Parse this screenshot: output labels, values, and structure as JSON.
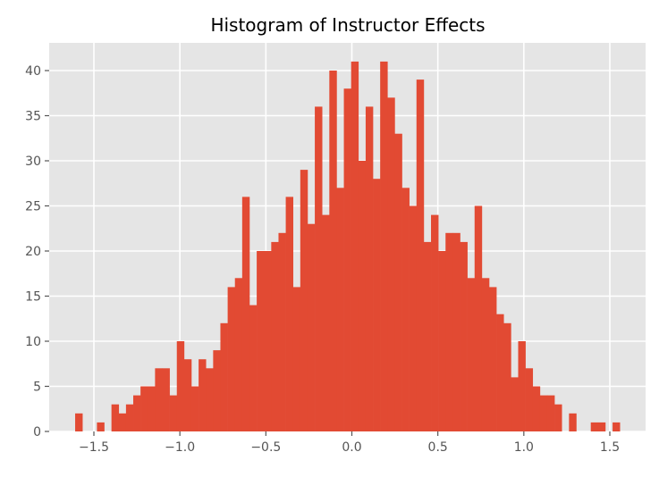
{
  "chart_data": {
    "type": "bar",
    "title": "Histogram of Instructor Effects",
    "xlabel": "",
    "ylabel": "",
    "bin_start": -1.609,
    "bin_width": 0.04223,
    "counts": [
      2,
      0,
      0,
      1,
      0,
      3,
      2,
      3,
      4,
      5,
      5,
      7,
      7,
      4,
      10,
      8,
      5,
      8,
      7,
      9,
      12,
      16,
      17,
      26,
      14,
      20,
      20,
      21,
      22,
      26,
      16,
      29,
      23,
      36,
      24,
      40,
      27,
      38,
      41,
      30,
      36,
      28,
      41,
      37,
      33,
      27,
      25,
      39,
      21,
      24,
      20,
      22,
      22,
      21,
      17,
      25,
      17,
      16,
      13,
      12,
      6,
      10,
      7,
      5,
      4,
      4,
      3,
      0,
      2,
      0,
      0,
      1,
      1,
      0,
      1
    ],
    "xlim": [
      -1.76,
      1.708
    ],
    "ylim": [
      0,
      43.07
    ],
    "xticks": [
      -1.5,
      -1.0,
      -0.5,
      0.0,
      0.5,
      1.0,
      1.5
    ],
    "xtick_labels": [
      "−1.5",
      "−1.0",
      "−0.5",
      "0.0",
      "0.5",
      "1.0",
      "1.5"
    ],
    "yticks": [
      0,
      5,
      10,
      15,
      20,
      25,
      30,
      35,
      40
    ],
    "ytick_labels": [
      "0",
      "5",
      "10",
      "15",
      "20",
      "25",
      "30",
      "35",
      "40"
    ],
    "grid": true,
    "colors": {
      "bar": "#E24A33",
      "background": "#E5E5E5",
      "grid": "#FFFFFF",
      "tick": "#555555"
    }
  }
}
